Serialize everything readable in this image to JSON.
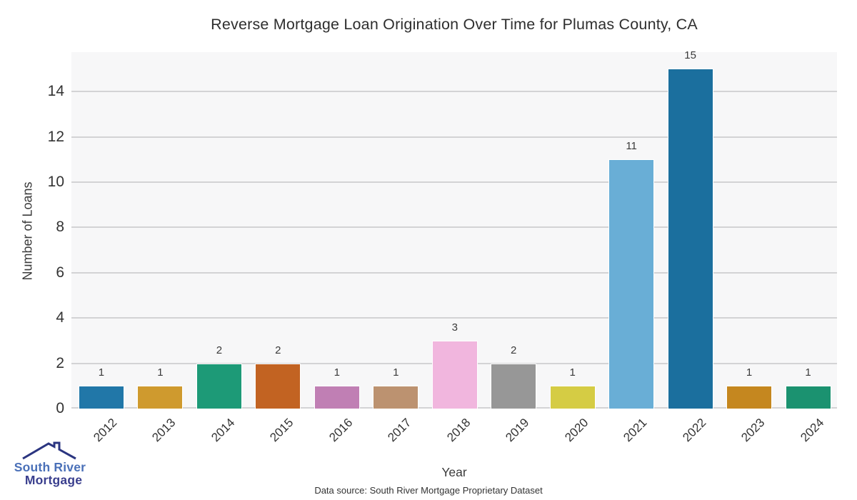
{
  "chart_data": {
    "type": "bar",
    "title": "Reverse Mortgage Loan Origination Over Time for Plumas County, CA",
    "xlabel": "Year",
    "ylabel": "Number of Loans",
    "categories": [
      "2012",
      "2013",
      "2014",
      "2015",
      "2016",
      "2017",
      "2018",
      "2019",
      "2020",
      "2021",
      "2022",
      "2023",
      "2024"
    ],
    "values": [
      1,
      1,
      2,
      2,
      1,
      1,
      3,
      2,
      1,
      11,
      15,
      1,
      1
    ],
    "bar_colors": [
      "#2177a8",
      "#cf9a2e",
      "#1d9a77",
      "#c26322",
      "#c07fb4",
      "#bc9270",
      "#f1b6de",
      "#979797",
      "#d5cc44",
      "#69aed6",
      "#1b6f9e",
      "#c5871f",
      "#1b9270"
    ],
    "yticks": [
      0,
      2,
      4,
      6,
      8,
      10,
      12,
      14
    ],
    "ylim": [
      0,
      15.74
    ],
    "grid": "horizontal-only",
    "legend": "none",
    "value_labels_shown": true,
    "plot_bg_color": "#f7f7f8",
    "gridline_color": "#d3d3d5",
    "text_color": "#333333"
  },
  "footer": {
    "source": "Data source: South River Mortgage Proprietary Dataset"
  },
  "logo": {
    "icon": "house-roof-icon",
    "line1": "South River",
    "line2": "Mortgage",
    "roof_color": "#2b3580",
    "line1_color": "#4a70b8",
    "line2_color": "#3a3f8e"
  }
}
